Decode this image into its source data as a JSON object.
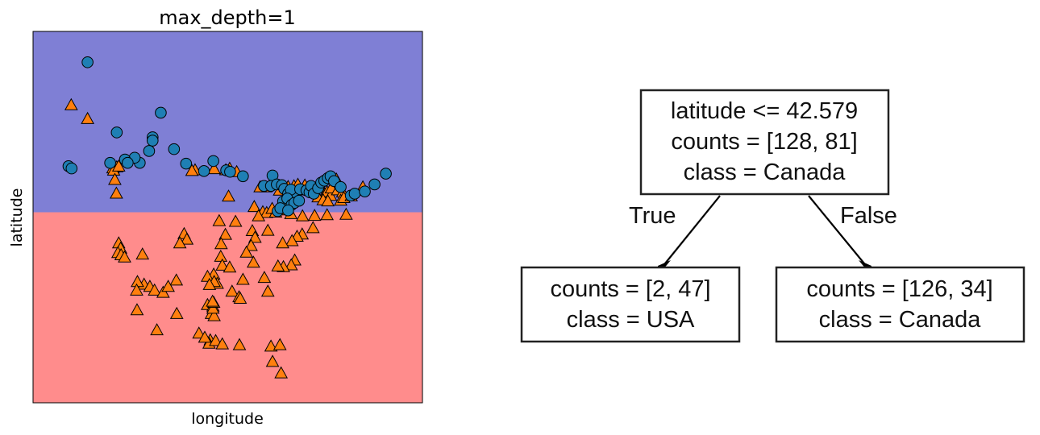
{
  "colors": {
    "upper_region": "#7f7fd5",
    "lower_region": "#ff8c8c",
    "canada_marker": "#1f7fb4",
    "usa_marker": "#ff7f0e",
    "marker_edge": "#000000"
  },
  "chart_data": [
    {
      "type": "scatter",
      "title": "max_depth=1",
      "xlabel": "longitude",
      "ylabel": "latitude",
      "xlim": [
        0,
        100
      ],
      "ylim": [
        0,
        100
      ],
      "xticks": false,
      "yticks": false,
      "grid": false,
      "decision_boundary": {
        "axis": "y",
        "value": 51.3,
        "upper_class": "Canada",
        "lower_class": "USA"
      },
      "series": [
        {
          "marker": "circle",
          "points": [
            [
              14.0,
              91.7
            ],
            [
              32.8,
              78.1
            ],
            [
              21.5,
              72.8
            ],
            [
              30.7,
              71.5
            ],
            [
              30.7,
              70.6
            ],
            [
              29.8,
              67.8
            ],
            [
              27.4,
              64.6
            ],
            [
              26.1,
              66.0
            ],
            [
              36.2,
              68.3
            ],
            [
              23.6,
              65.5
            ],
            [
              24.3,
              64.6
            ],
            [
              9.1,
              63.7
            ],
            [
              9.9,
              63.1
            ],
            [
              19.8,
              64.6
            ],
            [
              39.3,
              64.4
            ],
            [
              46.3,
              65.1
            ],
            [
              43.9,
              62.4
            ],
            [
              49.6,
              62.6
            ],
            [
              50.6,
              62.2
            ],
            [
              53.9,
              61.0
            ],
            [
              61.5,
              61.2
            ],
            [
              59.3,
              58.4
            ],
            [
              61.1,
              58.4
            ],
            [
              62.6,
              58.8
            ],
            [
              63.9,
              58.6
            ],
            [
              64.5,
              57.6
            ],
            [
              65.5,
              56.3
            ],
            [
              66.5,
              55.4
            ],
            [
              67.5,
              56.3
            ],
            [
              66.2,
              57.4
            ],
            [
              68.6,
              57.5
            ],
            [
              70.2,
              57.2
            ],
            [
              71.0,
              56.7
            ],
            [
              71.4,
              58.4
            ],
            [
              72.1,
              56.3
            ],
            [
              73.2,
              57.8
            ],
            [
              74.0,
              59.3
            ],
            [
              74.8,
              59.8
            ],
            [
              75.7,
              60.5
            ],
            [
              76.4,
              61.0
            ],
            [
              77.3,
              59.7
            ],
            [
              79.0,
              58.1
            ],
            [
              81.6,
              55.8
            ],
            [
              82.6,
              56.3
            ],
            [
              85.2,
              56.9
            ],
            [
              87.7,
              58.8
            ],
            [
              90.6,
              61.7
            ],
            [
              64.2,
              54.2
            ],
            [
              65.3,
              55.0
            ],
            [
              66.4,
              53.3
            ],
            [
              67.1,
              53.8
            ],
            [
              68.3,
              54.4
            ],
            [
              62.8,
              51.6
            ],
            [
              63.5,
              52.4
            ],
            [
              65.5,
              51.8
            ]
          ]
        },
        {
          "marker": "triangle",
          "points": [
            [
              9.8,
              80.2
            ],
            [
              14.0,
              76.5
            ],
            [
              21.5,
              63.5
            ],
            [
              20.5,
              63.2
            ],
            [
              20.7,
              62.6
            ],
            [
              22.0,
              63.7
            ],
            [
              41.6,
              62.7
            ],
            [
              40.8,
              62.5
            ],
            [
              46.5,
              63.0
            ],
            [
              49.5,
              62.7
            ],
            [
              50.5,
              63.1
            ],
            [
              52.3,
              62.2
            ],
            [
              21.0,
              60.1
            ],
            [
              21.4,
              56.4
            ],
            [
              50.2,
              55.6
            ],
            [
              59.8,
              58.1
            ],
            [
              58.3,
              58.1
            ],
            [
              61.5,
              59.2
            ],
            [
              63.3,
              57.2
            ],
            [
              65.5,
              58.2
            ],
            [
              67.0,
              58.4
            ],
            [
              68.0,
              58.8
            ],
            [
              69.8,
              58.6
            ],
            [
              70.5,
              57.3
            ],
            [
              71.6,
              57.9
            ],
            [
              72.3,
              57.0
            ],
            [
              73.7,
              58.3
            ],
            [
              74.9,
              56.2
            ],
            [
              75.5,
              56.8
            ],
            [
              76.4,
              55.8
            ],
            [
              73.2,
              55.4
            ],
            [
              74.5,
              54.6
            ],
            [
              75.7,
              54.3
            ],
            [
              76.6,
              57.8
            ],
            [
              77.9,
              60.2
            ],
            [
              78.2,
              57.3
            ],
            [
              79.5,
              56.7
            ],
            [
              79.0,
              54.5
            ],
            [
              79.8,
              55.2
            ],
            [
              81.7,
              55.7
            ],
            [
              84.7,
              58.1
            ],
            [
              56.8,
              52.8
            ],
            [
              59.0,
              51.4
            ],
            [
              60.0,
              51.2
            ],
            [
              61.4,
              52.3
            ],
            [
              62.3,
              51.3
            ],
            [
              63.8,
              51.9
            ],
            [
              66.2,
              50.9
            ],
            [
              69.2,
              50.3
            ],
            [
              72.3,
              50.4
            ],
            [
              75.5,
              50.6
            ],
            [
              80.4,
              50.7
            ],
            [
              47.8,
              49.0
            ],
            [
              52.0,
              48.8
            ],
            [
              57.9,
              50.3
            ],
            [
              60.3,
              46.4
            ],
            [
              71.9,
              47.1
            ],
            [
              69.1,
              45.4
            ],
            [
              67.8,
              44.8
            ],
            [
              66.5,
              43.6
            ],
            [
              64.1,
              43.0
            ],
            [
              56.3,
              46.3
            ],
            [
              49.4,
              45.3
            ],
            [
              48.3,
              42.8
            ],
            [
              38.8,
              45.5
            ],
            [
              39.5,
              44.0
            ],
            [
              37.7,
              43.0
            ],
            [
              57.0,
              44.5
            ],
            [
              56.0,
              42.3
            ],
            [
              54.8,
              40.5
            ],
            [
              22.0,
              43.0
            ],
            [
              22.5,
              41.6
            ],
            [
              21.8,
              40.4
            ],
            [
              22.6,
              39.8
            ],
            [
              23.5,
              39.2
            ],
            [
              28.1,
              40.0
            ],
            [
              48.2,
              39.4
            ],
            [
              48.6,
              37.0
            ],
            [
              50.5,
              36.5
            ],
            [
              67.2,
              38.4
            ],
            [
              66.3,
              37.1
            ],
            [
              64.3,
              36.6
            ],
            [
              62.9,
              36.8
            ],
            [
              56.6,
              37.8
            ],
            [
              28.5,
              31.9
            ],
            [
              36.8,
              33.0
            ],
            [
              46.4,
              34.6
            ],
            [
              44.8,
              34.0
            ],
            [
              53.9,
              33.2
            ],
            [
              59.4,
              33.7
            ],
            [
              26.8,
              32.6
            ],
            [
              26.6,
              30.3
            ],
            [
              30.0,
              31.3
            ],
            [
              31.2,
              30.3
            ],
            [
              33.4,
              29.7
            ],
            [
              34.7,
              31.3
            ],
            [
              47.3,
              32.1
            ],
            [
              46.5,
              32.6
            ],
            [
              45.3,
              31.8
            ],
            [
              51.1,
              30.0
            ],
            [
              60.3,
              30.0
            ],
            [
              52.9,
              28.5
            ],
            [
              53.2,
              28.1
            ],
            [
              44.8,
              26.4
            ],
            [
              46.2,
              26.0
            ],
            [
              45.8,
              24.0
            ],
            [
              46.5,
              23.4
            ],
            [
              26.7,
              25.0
            ],
            [
              36.9,
              24.0
            ],
            [
              46.2,
              25.4
            ],
            [
              46.4,
              27.0
            ],
            [
              46.1,
              27.3
            ],
            [
              45.5,
              16.9
            ],
            [
              45.2,
              16.0
            ],
            [
              46.9,
              16.7
            ],
            [
              42.6,
              18.7
            ],
            [
              44.1,
              17.6
            ],
            [
              48.6,
              15.8
            ],
            [
              53.0,
              15.6
            ],
            [
              61.1,
              15.2
            ],
            [
              63.4,
              15.6
            ],
            [
              61.5,
              11.1
            ],
            [
              63.7,
              8.0
            ],
            [
              31.8,
              19.6
            ]
          ]
        }
      ]
    },
    {
      "type": "tree",
      "root": {
        "lines": [
          "latitude <= 42.579",
          "counts = [128, 81]",
          "class = Canada"
        ]
      },
      "edges": [
        "True",
        "False"
      ],
      "left": {
        "lines": [
          "counts = [2, 47]",
          "class = USA"
        ]
      },
      "right": {
        "lines": [
          "counts = [126, 34]",
          "class = Canada"
        ]
      }
    }
  ]
}
